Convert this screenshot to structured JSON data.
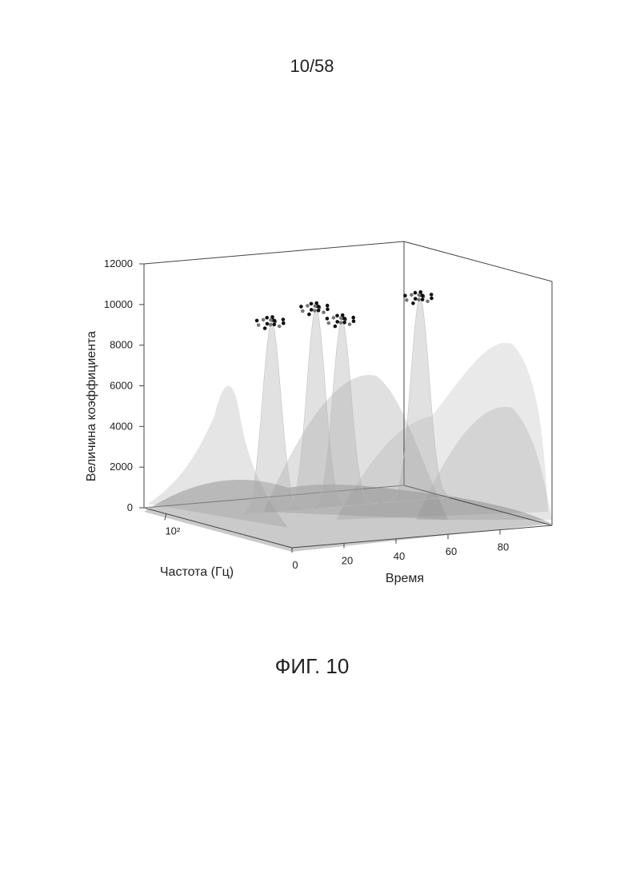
{
  "page_number": "10/58",
  "caption": "ФИГ. 10",
  "chart_data": {
    "type": "surface3d",
    "zlabel": "Величина коэффициента",
    "xlabel": "Время",
    "ylabel": "Частота (Гц)",
    "xlim": [
      0,
      100
    ],
    "xticks": [
      0,
      20,
      40,
      60,
      80
    ],
    "ylim": [
      50,
      5000
    ],
    "yscale": "log",
    "yticks": [
      {
        "value": 100,
        "label": "10²"
      }
    ],
    "zlim": [
      0,
      12000
    ],
    "zticks": [
      0,
      2000,
      4000,
      6000,
      8000,
      10000,
      12000
    ],
    "peaks": {
      "x": [
        32,
        49,
        59,
        89
      ],
      "y": [
        200,
        200,
        200,
        200
      ],
      "values": [
        9400,
        9900,
        9200,
        10000
      ],
      "color": "#111111"
    }
  }
}
